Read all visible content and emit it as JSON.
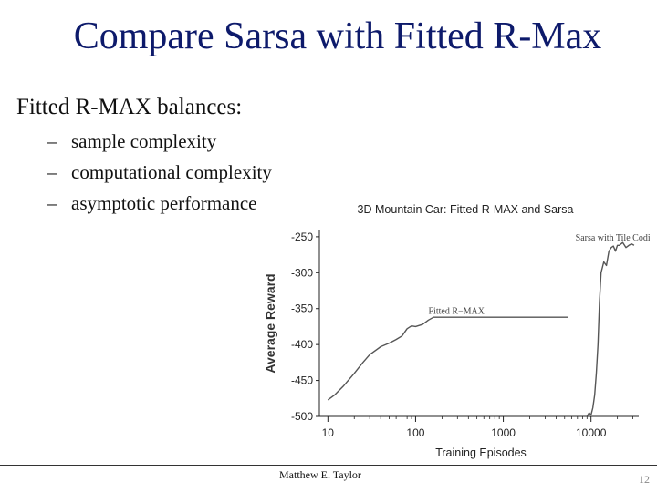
{
  "slide": {
    "title": "Compare Sarsa with Fitted R-Max",
    "lead": "Fitted R-MAX balances:",
    "bullets": [
      "sample complexity",
      "computational complexity",
      "asymptotic performance"
    ],
    "author": "Matthew E. Taylor",
    "page_number": "12"
  },
  "chart_data": {
    "type": "line",
    "title": "3D Mountain Car: Fitted R-MAX and Sarsa",
    "xlabel": "Training Episodes",
    "ylabel": "Average Reward",
    "xscale": "log",
    "xlim": [
      8,
      35000
    ],
    "ylim": [
      -500,
      -240
    ],
    "xticks": [
      10,
      100,
      1000,
      10000
    ],
    "yticks": [
      -250,
      -300,
      -350,
      -400,
      -450,
      -500
    ],
    "grid": false,
    "colors": {
      "lines": "#555555",
      "axes": "#222222"
    },
    "series": [
      {
        "name": "Fitted R-MAX",
        "x": [
          10,
          12,
          15,
          20,
          25,
          30,
          40,
          50,
          60,
          70,
          80,
          90,
          100,
          120,
          140,
          160,
          200,
          300,
          500,
          1000,
          2000,
          3000,
          4500,
          5500
        ],
        "y": [
          -477,
          -470,
          -458,
          -440,
          -425,
          -414,
          -403,
          -398,
          -393,
          -388,
          -378,
          -374,
          -375,
          -372,
          -366,
          -362,
          -362,
          -362,
          -362,
          -362,
          -362,
          -362,
          -362,
          -362
        ]
      },
      {
        "name": "Sarsa with Tile Coding",
        "x": [
          9000,
          9500,
          10000,
          10500,
          11000,
          11500,
          12000,
          12500,
          13000,
          14000,
          15000,
          16000,
          17000,
          18000,
          19000,
          20000,
          21000,
          23000,
          25000,
          27000,
          29000,
          31000
        ],
        "y": [
          -500,
          -495,
          -498,
          -488,
          -470,
          -440,
          -400,
          -340,
          -300,
          -285,
          -290,
          -270,
          -265,
          -263,
          -270,
          -262,
          -262,
          -258,
          -265,
          -262,
          -260,
          -262
        ]
      }
    ],
    "annotations": [
      {
        "text": "Sarsa with Tile Coding",
        "x": 20000,
        "y": -255
      },
      {
        "text": "Fitted R−MAX",
        "x": 140,
        "y": -357
      }
    ]
  }
}
